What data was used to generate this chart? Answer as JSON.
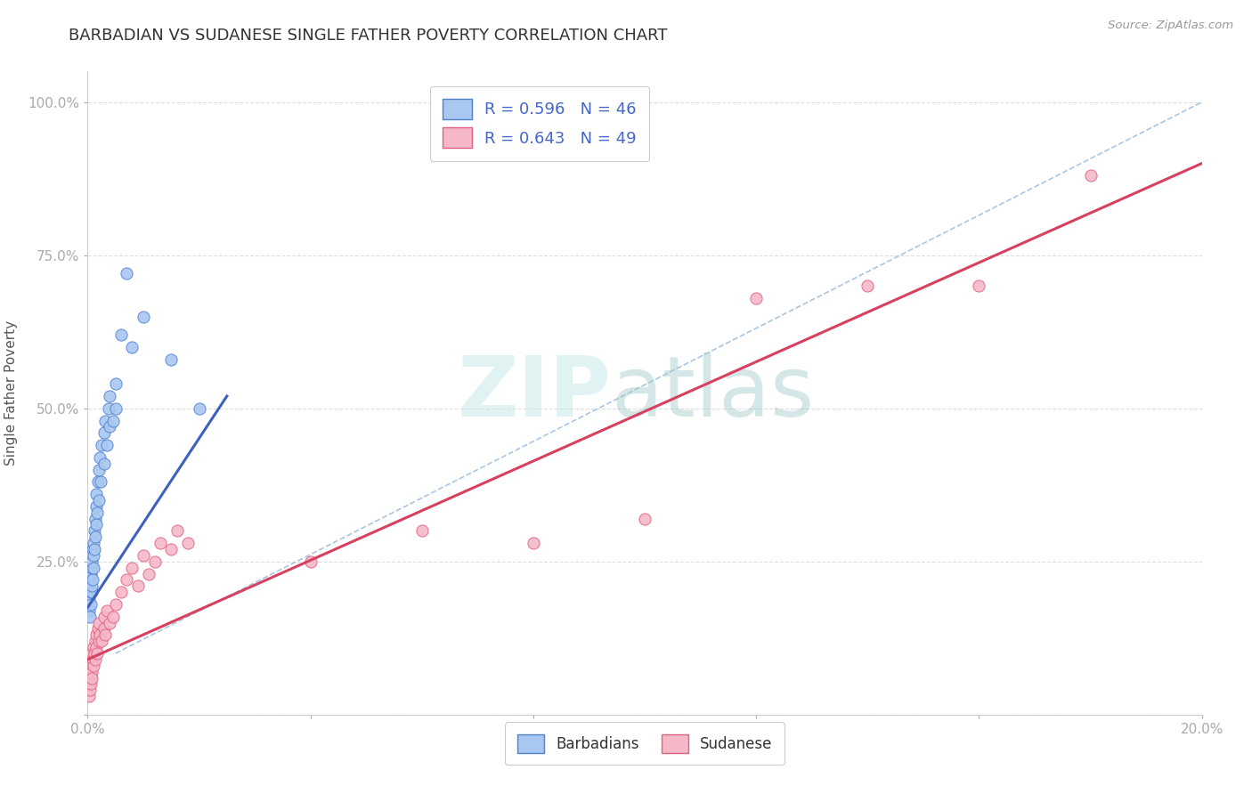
{
  "title": "BARBADIAN VS SUDANESE SINGLE FATHER POVERTY CORRELATION CHART",
  "source": "Source: ZipAtlas.com",
  "ylabel": "Single Father Poverty",
  "xlim": [
    0.0,
    0.2
  ],
  "ylim": [
    0.0,
    1.05
  ],
  "xtick_positions": [
    0.0,
    0.04,
    0.08,
    0.12,
    0.16,
    0.2
  ],
  "xticklabels": [
    "0.0%",
    "",
    "",
    "",
    "",
    "20.0%"
  ],
  "ytick_positions": [
    0.0,
    0.25,
    0.5,
    0.75,
    1.0
  ],
  "yticklabels": [
    "",
    "25.0%",
    "50.0%",
    "75.0%",
    "100.0%"
  ],
  "barbadian_R": 0.596,
  "barbadian_N": 46,
  "sudanese_R": 0.643,
  "sudanese_N": 49,
  "blue_fill": "#A8C8F0",
  "pink_fill": "#F5B8C8",
  "blue_edge": "#5080D0",
  "pink_edge": "#E06080",
  "blue_line": "#4060C0",
  "pink_line": "#D84060",
  "dash_color": "#99BBDD",
  "background_color": "#FFFFFF",
  "barbadians_x": [
    0.0002,
    0.0003,
    0.0004,
    0.0005,
    0.0005,
    0.0006,
    0.0006,
    0.0007,
    0.0007,
    0.0008,
    0.0008,
    0.0009,
    0.0009,
    0.001,
    0.001,
    0.001,
    0.0012,
    0.0012,
    0.0013,
    0.0014,
    0.0015,
    0.0015,
    0.0016,
    0.0017,
    0.0018,
    0.002,
    0.002,
    0.0022,
    0.0023,
    0.0025,
    0.003,
    0.003,
    0.0032,
    0.0035,
    0.0038,
    0.004,
    0.004,
    0.0045,
    0.005,
    0.005,
    0.006,
    0.007,
    0.008,
    0.01,
    0.015,
    0.02
  ],
  "barbadians_y": [
    0.17,
    0.19,
    0.16,
    0.2,
    0.22,
    0.18,
    0.23,
    0.2,
    0.24,
    0.21,
    0.25,
    0.22,
    0.27,
    0.24,
    0.26,
    0.28,
    0.3,
    0.27,
    0.32,
    0.29,
    0.34,
    0.31,
    0.36,
    0.33,
    0.38,
    0.4,
    0.35,
    0.42,
    0.38,
    0.44,
    0.46,
    0.41,
    0.48,
    0.44,
    0.5,
    0.47,
    0.52,
    0.48,
    0.54,
    0.5,
    0.62,
    0.72,
    0.6,
    0.65,
    0.58,
    0.5
  ],
  "sudanese_x": [
    0.0002,
    0.0003,
    0.0004,
    0.0005,
    0.0005,
    0.0006,
    0.0007,
    0.0007,
    0.0008,
    0.0009,
    0.001,
    0.001,
    0.0012,
    0.0013,
    0.0014,
    0.0015,
    0.0016,
    0.0017,
    0.0018,
    0.002,
    0.002,
    0.0022,
    0.0025,
    0.003,
    0.003,
    0.0032,
    0.0035,
    0.004,
    0.0045,
    0.005,
    0.006,
    0.007,
    0.008,
    0.009,
    0.01,
    0.011,
    0.012,
    0.013,
    0.015,
    0.016,
    0.018,
    0.04,
    0.06,
    0.08,
    0.1,
    0.12,
    0.14,
    0.16,
    0.18
  ],
  "sudanese_y": [
    0.03,
    0.05,
    0.04,
    0.06,
    0.08,
    0.05,
    0.07,
    0.1,
    0.06,
    0.09,
    0.08,
    0.11,
    0.1,
    0.12,
    0.09,
    0.11,
    0.13,
    0.1,
    0.14,
    0.12,
    0.15,
    0.13,
    0.12,
    0.14,
    0.16,
    0.13,
    0.17,
    0.15,
    0.16,
    0.18,
    0.2,
    0.22,
    0.24,
    0.21,
    0.26,
    0.23,
    0.25,
    0.28,
    0.27,
    0.3,
    0.28,
    0.25,
    0.3,
    0.28,
    0.32,
    0.68,
    0.7,
    0.7,
    0.88
  ]
}
